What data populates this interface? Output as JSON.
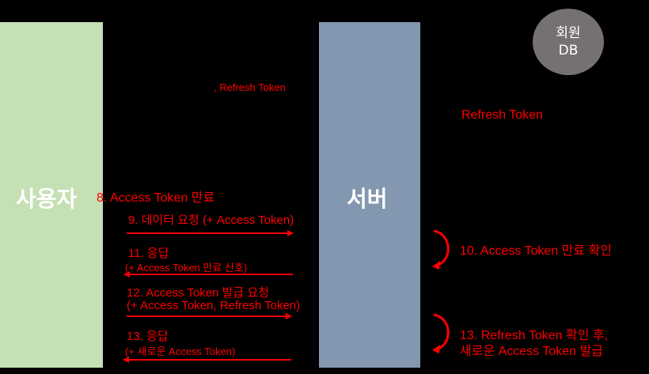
{
  "actors": {
    "user": "사용자",
    "server": "서버",
    "db_line1": "회원",
    "db_line2": "DB"
  },
  "notes": {
    "top_refresh": ", Refresh Token",
    "right_refresh": "Refresh Token",
    "step8": "8. Access Token 만료",
    "step10": "10. Access Token 만료 확인",
    "step13_server_line1": "13. Refresh Token 확인 후,",
    "step13_server_line2": "새로운 Access Token 발급"
  },
  "messages": {
    "step9": "9. 데이터 요청 (+ Access Token)",
    "step11_line1": "11. 응답",
    "step11_line2": "(+ Access Token 만료 신호)",
    "step12_line1": "12. Access Token 발급 요청",
    "step12_line2": "(+ Access Token, Refresh Token)",
    "step13_line1": "13. 응답",
    "step13_line2": "(+ 새로운 Access Token)"
  },
  "colors": {
    "background": "#000000",
    "user_lifeline": "#c5e0b4",
    "server_lifeline": "#8497b0",
    "db": "#767171",
    "annotation": "#ff0000"
  }
}
